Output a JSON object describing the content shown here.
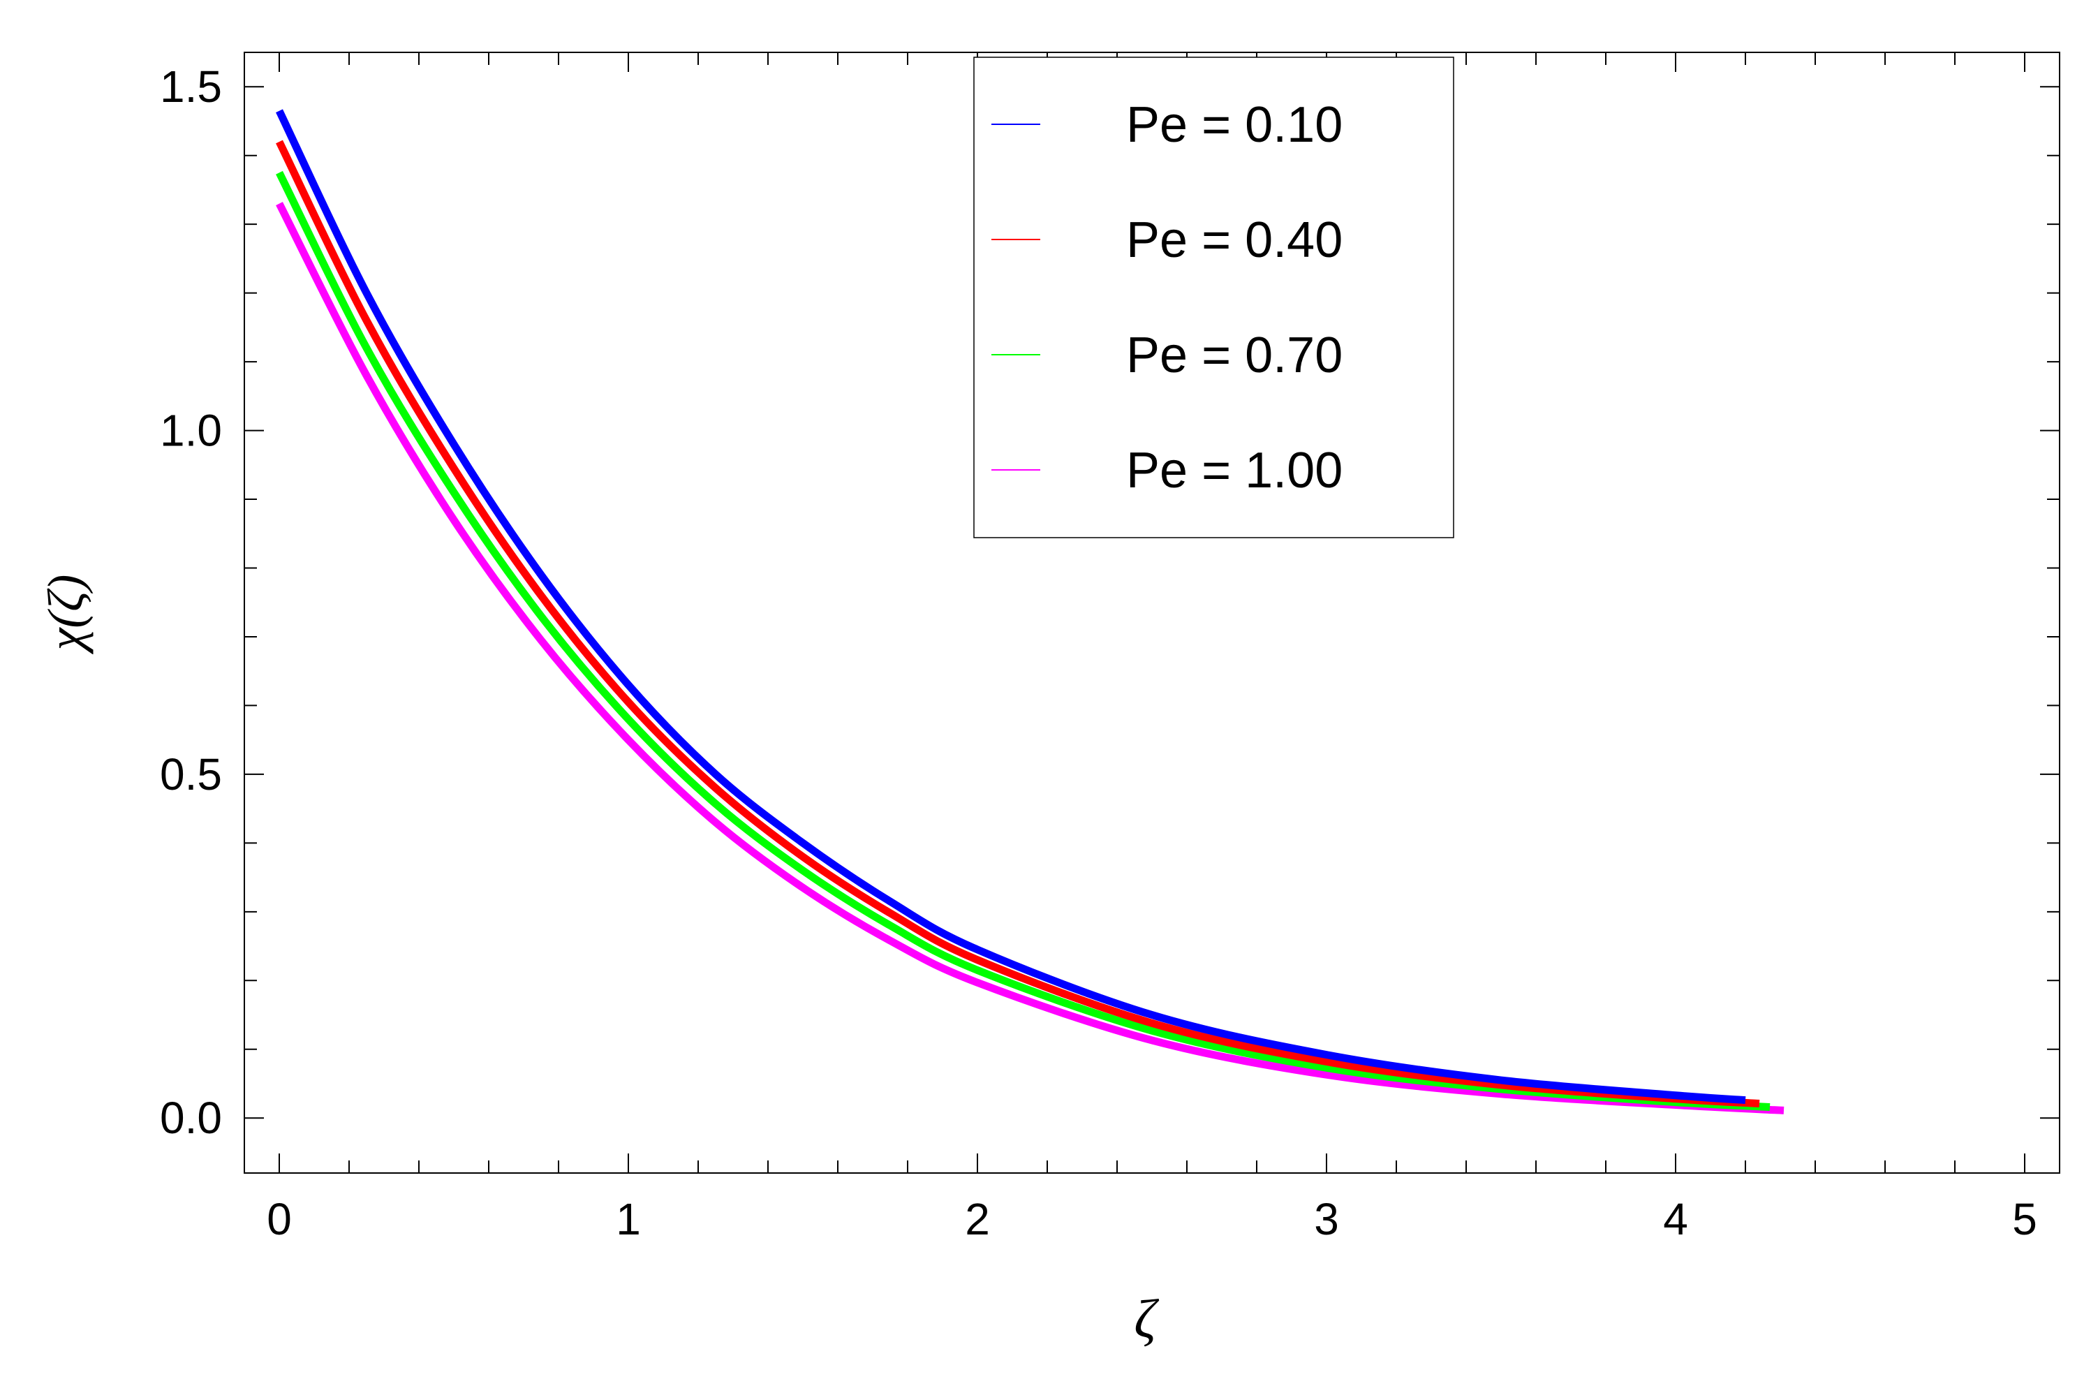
{
  "chart_data": {
    "type": "line",
    "title": "",
    "xlabel": "ζ",
    "ylabel": "χ(ζ)",
    "xlim": [
      -0.1,
      5.1
    ],
    "ylim": [
      -0.08,
      1.55
    ],
    "x_ticks": [
      "0",
      "1",
      "2",
      "3",
      "4",
      "5"
    ],
    "y_ticks": [
      "0.0",
      "0.5",
      "1.0",
      "1.5"
    ],
    "grid": false,
    "legend_position": "top-center",
    "series": [
      {
        "name": "Pe = 0.10",
        "color": "#0000ff",
        "x_end": 4.2,
        "x": [
          0,
          0.25,
          0.5,
          0.75,
          1.0,
          1.25,
          1.5,
          1.75,
          2.0,
          2.5,
          3.0,
          3.5,
          4.0,
          4.2
        ],
        "y": [
          1.465,
          1.2,
          0.98,
          0.79,
          0.63,
          0.5,
          0.4,
          0.315,
          0.245,
          0.15,
          0.092,
          0.055,
          0.033,
          0.026
        ]
      },
      {
        "name": "Pe = 0.40",
        "color": "#ff0000",
        "x_end": 4.24,
        "x": [
          0,
          0.25,
          0.5,
          0.75,
          1.0,
          1.25,
          1.5,
          1.75,
          2.0,
          2.5,
          3.0,
          3.5,
          4.0,
          4.24
        ],
        "y": [
          1.42,
          1.16,
          0.945,
          0.76,
          0.605,
          0.48,
          0.38,
          0.298,
          0.23,
          0.138,
          0.082,
          0.048,
          0.028,
          0.021
        ]
      },
      {
        "name": "Pe = 0.70",
        "color": "#00ff00",
        "x_end": 4.27,
        "x": [
          0,
          0.25,
          0.5,
          0.75,
          1.0,
          1.25,
          1.5,
          1.75,
          2.0,
          2.5,
          3.0,
          3.5,
          4.0,
          4.27
        ],
        "y": [
          1.375,
          1.12,
          0.91,
          0.73,
          0.58,
          0.457,
          0.36,
          0.28,
          0.215,
          0.127,
          0.073,
          0.042,
          0.023,
          0.016
        ]
      },
      {
        "name": "Pe = 1.00",
        "color": "#ff00ff",
        "x_end": 4.31,
        "x": [
          0,
          0.25,
          0.5,
          0.75,
          1.0,
          1.25,
          1.5,
          1.75,
          2.0,
          2.5,
          3.0,
          3.5,
          4.0,
          4.31
        ],
        "y": [
          1.33,
          1.08,
          0.87,
          0.695,
          0.55,
          0.43,
          0.335,
          0.258,
          0.197,
          0.113,
          0.063,
          0.035,
          0.019,
          0.011
        ]
      }
    ]
  }
}
